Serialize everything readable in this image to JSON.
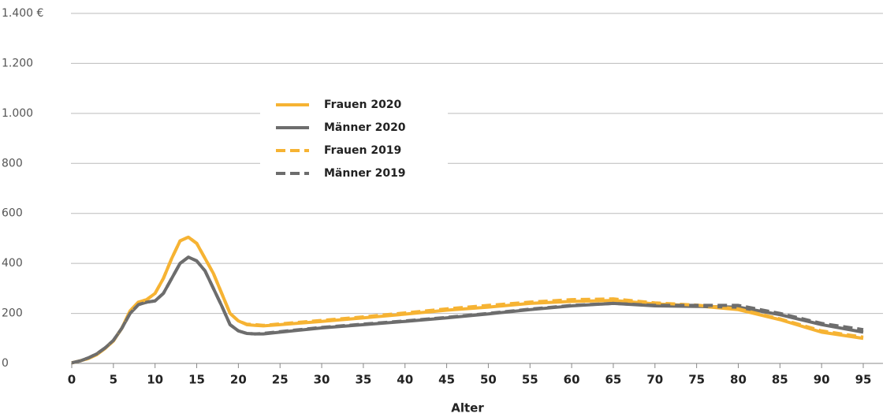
{
  "chart_data": {
    "type": "line",
    "x_label": "Alter",
    "x": [
      0,
      1,
      2,
      3,
      4,
      5,
      6,
      7,
      8,
      9,
      10,
      11,
      12,
      13,
      14,
      15,
      16,
      17,
      18,
      19,
      20,
      21,
      22,
      23,
      25,
      30,
      35,
      40,
      45,
      50,
      55,
      60,
      65,
      70,
      75,
      80,
      85,
      90,
      95
    ],
    "series": [
      {
        "name": "Frauen 2020",
        "color": "#f6b333",
        "style": "solid",
        "values": [
          2,
          10,
          20,
          35,
          60,
          90,
          140,
          210,
          245,
          255,
          280,
          340,
          420,
          490,
          505,
          480,
          420,
          360,
          280,
          200,
          170,
          155,
          152,
          150,
          155,
          168,
          182,
          197,
          213,
          225,
          240,
          248,
          252,
          238,
          230,
          215,
          175,
          125,
          100
        ]
      },
      {
        "name": "Männer 2020",
        "color": "#6d6d6d",
        "style": "solid",
        "values": [
          2,
          10,
          22,
          38,
          62,
          92,
          140,
          200,
          235,
          245,
          250,
          280,
          340,
          400,
          425,
          410,
          370,
          300,
          230,
          155,
          130,
          120,
          118,
          118,
          125,
          142,
          155,
          168,
          182,
          198,
          215,
          230,
          240,
          230,
          228,
          225,
          195,
          155,
          125
        ]
      },
      {
        "name": "Frauen 2019",
        "color": "#f6b333",
        "style": "dashed",
        "values": [
          2,
          10,
          20,
          35,
          60,
          90,
          140,
          210,
          245,
          255,
          280,
          340,
          420,
          490,
          505,
          480,
          420,
          360,
          280,
          200,
          170,
          157,
          155,
          152,
          158,
          172,
          186,
          202,
          218,
          232,
          245,
          255,
          258,
          242,
          233,
          218,
          178,
          130,
          105
        ]
      },
      {
        "name": "Männer 2019",
        "color": "#6d6d6d",
        "style": "dashed",
        "values": [
          2,
          10,
          22,
          38,
          62,
          92,
          140,
          200,
          235,
          245,
          250,
          280,
          340,
          400,
          425,
          410,
          370,
          300,
          230,
          155,
          130,
          120,
          118,
          120,
          127,
          144,
          157,
          170,
          184,
          200,
          217,
          232,
          240,
          232,
          232,
          232,
          200,
          160,
          135
        ]
      }
    ],
    "xlim": [
      0,
      95
    ],
    "xticks": [
      0,
      5,
      10,
      15,
      20,
      25,
      30,
      35,
      40,
      45,
      50,
      55,
      60,
      65,
      70,
      75,
      80,
      85,
      90,
      95
    ],
    "ylim": [
      0,
      1400
    ],
    "yticks": [
      0,
      200,
      400,
      600,
      800,
      {
        "value": 1000,
        "label": "1.000"
      },
      {
        "value": 1200,
        "label": "1.200"
      },
      {
        "value": 1400,
        "label": "1.400 €"
      }
    ],
    "grid": true
  }
}
